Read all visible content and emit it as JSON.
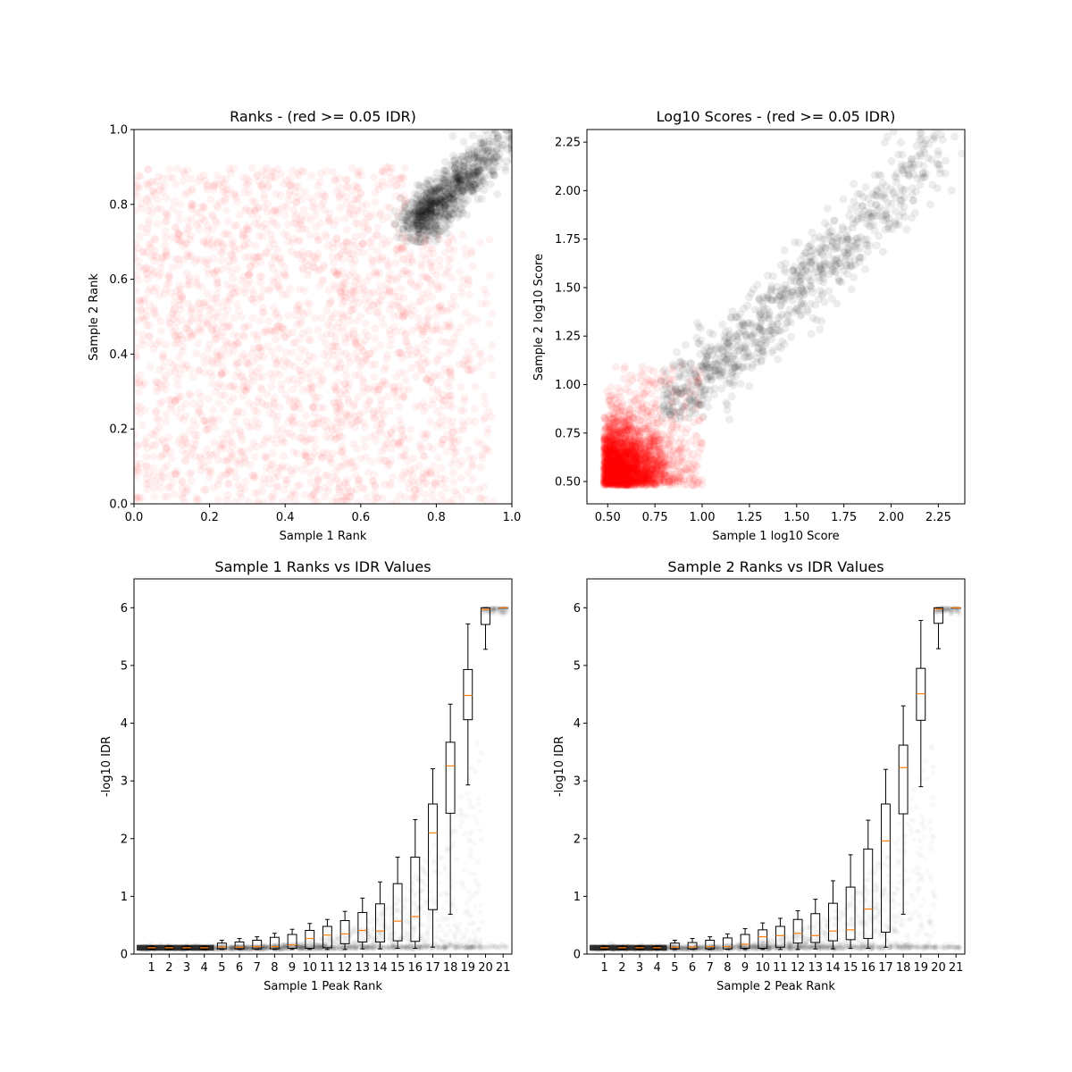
{
  "chart_data": [
    {
      "type": "scatter",
      "title": "Ranks - (red >= 0.05 IDR)",
      "xlabel": "Sample 1 Rank",
      "ylabel": "Sample 2 Rank",
      "xlim": [
        0,
        1
      ],
      "ylim": [
        0,
        1
      ],
      "xticks": [
        "0.0",
        "0.2",
        "0.4",
        "0.6",
        "0.8",
        "1.0"
      ],
      "yticks": [
        "0.0",
        "0.2",
        "0.4",
        "0.6",
        "0.8",
        "1.0"
      ],
      "colors": {
        "fail": "#ff0000",
        "pass": "#000000"
      },
      "series": [
        {
          "color": "#ff0000",
          "points": 2500,
          "x_range": [
            0.0,
            0.95
          ],
          "y_range": [
            0.0,
            0.9
          ],
          "distribution": "uniform"
        },
        {
          "color": "#000000",
          "points": 900,
          "x_range": [
            0.7,
            1.0
          ],
          "y_range": [
            0.7,
            1.0
          ],
          "distribution": "diagonal cluster toward (1,1)"
        }
      ]
    },
    {
      "type": "scatter",
      "title": "Log10 Scores - (red >= 0.05 IDR)",
      "xlabel": "Sample 1 log10 Score",
      "ylabel": "Sample 2 log10 Score",
      "xlim": [
        0.39,
        2.39
      ],
      "ylim": [
        0.385,
        2.315
      ],
      "xticks": [
        "0.50",
        "0.75",
        "1.00",
        "1.25",
        "1.50",
        "1.75",
        "2.00",
        "2.25"
      ],
      "yticks": [
        "0.50",
        "0.75",
        "1.00",
        "1.25",
        "1.50",
        "1.75",
        "2.00",
        "2.25"
      ],
      "colors": {
        "fail": "#ff0000",
        "pass": "#000000"
      },
      "series": [
        {
          "color": "#ff0000",
          "points": 2600,
          "x_range": [
            0.47,
            1.0
          ],
          "y_range": [
            0.47,
            1.12
          ],
          "distribution": "dense corner near (0.5,0.5)"
        },
        {
          "color": "#000000",
          "points": 900,
          "x_range": [
            0.75,
            2.3
          ],
          "y_range": [
            0.8,
            2.25
          ],
          "distribution": "diagonal band"
        }
      ]
    },
    {
      "type": "boxplot",
      "title": "Sample 1 Ranks vs IDR Values",
      "xlabel": "Sample 1 Peak Rank",
      "ylabel": "-log10 IDR",
      "ylim": [
        0,
        6.5
      ],
      "yticks": [
        "0",
        "1",
        "2",
        "3",
        "4",
        "5",
        "6"
      ],
      "categories": [
        "1",
        "2",
        "3",
        "4",
        "5",
        "6",
        "7",
        "8",
        "9",
        "10",
        "11",
        "12",
        "13",
        "14",
        "15",
        "16",
        "17",
        "18",
        "19",
        "20",
        "21"
      ],
      "boxes": [
        {
          "q1": 0.09,
          "med": 0.11,
          "q3": 0.13,
          "wlo": 0.08,
          "whi": 0.14
        },
        {
          "q1": 0.09,
          "med": 0.11,
          "q3": 0.13,
          "wlo": 0.08,
          "whi": 0.14
        },
        {
          "q1": 0.09,
          "med": 0.11,
          "q3": 0.13,
          "wlo": 0.08,
          "whi": 0.14
        },
        {
          "q1": 0.09,
          "med": 0.11,
          "q3": 0.13,
          "wlo": 0.08,
          "whi": 0.14
        },
        {
          "q1": 0.09,
          "med": 0.12,
          "q3": 0.19,
          "wlo": 0.08,
          "whi": 0.24
        },
        {
          "q1": 0.09,
          "med": 0.12,
          "q3": 0.21,
          "wlo": 0.08,
          "whi": 0.27
        },
        {
          "q1": 0.09,
          "med": 0.13,
          "q3": 0.24,
          "wlo": 0.08,
          "whi": 0.3
        },
        {
          "q1": 0.09,
          "med": 0.13,
          "q3": 0.29,
          "wlo": 0.08,
          "whi": 0.36
        },
        {
          "q1": 0.1,
          "med": 0.16,
          "q3": 0.34,
          "wlo": 0.08,
          "whi": 0.43
        },
        {
          "q1": 0.1,
          "med": 0.27,
          "q3": 0.41,
          "wlo": 0.08,
          "whi": 0.53
        },
        {
          "q1": 0.11,
          "med": 0.33,
          "q3": 0.48,
          "wlo": 0.08,
          "whi": 0.6
        },
        {
          "q1": 0.18,
          "med": 0.35,
          "q3": 0.58,
          "wlo": 0.08,
          "whi": 0.74
        },
        {
          "q1": 0.21,
          "med": 0.41,
          "q3": 0.72,
          "wlo": 0.09,
          "whi": 0.97
        },
        {
          "q1": 0.21,
          "med": 0.4,
          "q3": 0.87,
          "wlo": 0.09,
          "whi": 1.25
        },
        {
          "q1": 0.23,
          "med": 0.57,
          "q3": 1.22,
          "wlo": 0.1,
          "whi": 1.68
        },
        {
          "q1": 0.22,
          "med": 0.65,
          "q3": 1.68,
          "wlo": 0.1,
          "whi": 2.33
        },
        {
          "q1": 0.77,
          "med": 2.1,
          "q3": 2.6,
          "wlo": 0.12,
          "whi": 3.21
        },
        {
          "q1": 2.44,
          "med": 3.26,
          "q3": 3.67,
          "wlo": 0.69,
          "whi": 4.33
        },
        {
          "q1": 4.06,
          "med": 4.48,
          "q3": 4.93,
          "wlo": 2.93,
          "whi": 5.72
        },
        {
          "q1": 5.71,
          "med": 5.97,
          "q3": 6.0,
          "wlo": 5.28,
          "whi": 6.0
        },
        {
          "q1": 6.0,
          "med": 6.0,
          "q3": 6.0,
          "wlo": 6.0,
          "whi": 6.0
        }
      ]
    },
    {
      "type": "boxplot",
      "title": "Sample 2 Ranks vs IDR Values",
      "xlabel": "Sample 2 Peak Rank",
      "ylabel": "-log10 IDR",
      "ylim": [
        0,
        6.5
      ],
      "yticks": [
        "0",
        "1",
        "2",
        "3",
        "4",
        "5",
        "6"
      ],
      "categories": [
        "1",
        "2",
        "3",
        "4",
        "5",
        "6",
        "7",
        "8",
        "9",
        "10",
        "11",
        "12",
        "13",
        "14",
        "15",
        "16",
        "17",
        "18",
        "19",
        "20",
        "21"
      ],
      "boxes": [
        {
          "q1": 0.09,
          "med": 0.11,
          "q3": 0.13,
          "wlo": 0.08,
          "whi": 0.14
        },
        {
          "q1": 0.09,
          "med": 0.11,
          "q3": 0.13,
          "wlo": 0.08,
          "whi": 0.14
        },
        {
          "q1": 0.09,
          "med": 0.11,
          "q3": 0.13,
          "wlo": 0.08,
          "whi": 0.14
        },
        {
          "q1": 0.09,
          "med": 0.11,
          "q3": 0.13,
          "wlo": 0.08,
          "whi": 0.14
        },
        {
          "q1": 0.09,
          "med": 0.12,
          "q3": 0.19,
          "wlo": 0.08,
          "whi": 0.24
        },
        {
          "q1": 0.09,
          "med": 0.12,
          "q3": 0.2,
          "wlo": 0.08,
          "whi": 0.27
        },
        {
          "q1": 0.09,
          "med": 0.13,
          "q3": 0.24,
          "wlo": 0.08,
          "whi": 0.3
        },
        {
          "q1": 0.09,
          "med": 0.13,
          "q3": 0.28,
          "wlo": 0.08,
          "whi": 0.35
        },
        {
          "q1": 0.1,
          "med": 0.17,
          "q3": 0.34,
          "wlo": 0.08,
          "whi": 0.44
        },
        {
          "q1": 0.1,
          "med": 0.3,
          "q3": 0.42,
          "wlo": 0.08,
          "whi": 0.54
        },
        {
          "q1": 0.12,
          "med": 0.32,
          "q3": 0.48,
          "wlo": 0.08,
          "whi": 0.62
        },
        {
          "q1": 0.19,
          "med": 0.36,
          "q3": 0.6,
          "wlo": 0.08,
          "whi": 0.75
        },
        {
          "q1": 0.2,
          "med": 0.32,
          "q3": 0.7,
          "wlo": 0.09,
          "whi": 0.95
        },
        {
          "q1": 0.23,
          "med": 0.4,
          "q3": 0.88,
          "wlo": 0.09,
          "whi": 1.27
        },
        {
          "q1": 0.25,
          "med": 0.42,
          "q3": 1.16,
          "wlo": 0.1,
          "whi": 1.72
        },
        {
          "q1": 0.27,
          "med": 0.78,
          "q3": 1.82,
          "wlo": 0.1,
          "whi": 2.32
        },
        {
          "q1": 0.38,
          "med": 1.96,
          "q3": 2.6,
          "wlo": 0.12,
          "whi": 3.2
        },
        {
          "q1": 2.43,
          "med": 3.23,
          "q3": 3.62,
          "wlo": 0.69,
          "whi": 4.3
        },
        {
          "q1": 4.05,
          "med": 4.51,
          "q3": 4.95,
          "wlo": 2.9,
          "whi": 5.78
        },
        {
          "q1": 5.73,
          "med": 5.98,
          "q3": 6.0,
          "wlo": 5.29,
          "whi": 6.0
        },
        {
          "q1": 6.0,
          "med": 6.0,
          "q3": 6.0,
          "wlo": 6.0,
          "whi": 6.0
        }
      ]
    }
  ]
}
